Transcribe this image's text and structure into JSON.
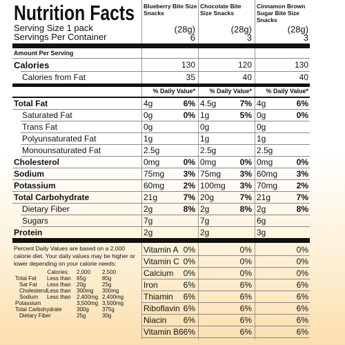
{
  "header": {
    "title": "Nutrition Facts",
    "columns": [
      "Blueberry Bite Size Snacks",
      "Chocolate Bite Size Snacks",
      "Cinnamon Brown Sugar Bite Size Snacks"
    ]
  },
  "serving": {
    "size_label": "Serving Size 1 pack",
    "sizes": [
      "(28g)",
      "(28g)",
      "(28g)"
    ],
    "per_container_label": "Servings Per Container",
    "per_container": [
      "6",
      "3",
      "3"
    ]
  },
  "amount_per_serving": "Amount Per Serving",
  "calories": {
    "label": "Calories",
    "amounts": [
      "130",
      "120",
      "130"
    ],
    "sub": {
      "label": "Calories from Fat",
      "amounts": [
        "35",
        "40",
        "40"
      ]
    }
  },
  "dv_heading": [
    "% Daily Value*",
    "% Daily Value*",
    "% Daily Value*"
  ],
  "nutrients": [
    {
      "label": "Total Fat",
      "amounts": [
        "4g",
        "4.5g",
        "4g"
      ],
      "dv": [
        "6%",
        "7%",
        "6%"
      ],
      "sub": [
        {
          "label": "Saturated Fat",
          "amounts": [
            "0g",
            "1g",
            "0g"
          ],
          "dv": [
            "0%",
            "5%",
            "0%"
          ]
        },
        {
          "label": "Trans Fat",
          "amounts": [
            "0g",
            "0g",
            "0g"
          ]
        },
        {
          "label": "Polyunsaturated Fat",
          "amounts": [
            "1g",
            "1g",
            "1g"
          ]
        },
        {
          "label": "Monounsaturated Fat",
          "amounts": [
            "2.5g",
            "2.5g",
            "2.5g"
          ]
        }
      ]
    },
    {
      "label": "Cholesterol",
      "amounts": [
        "0mg",
        "0mg",
        "0mg"
      ],
      "dv": [
        "0%",
        "0%",
        "0%"
      ]
    },
    {
      "label": "Sodium",
      "amounts": [
        "75mg",
        "75mg",
        "60mg"
      ],
      "dv": [
        "3%",
        "3%",
        "3%"
      ]
    },
    {
      "label": "Potassium",
      "amounts": [
        "60mg",
        "100mg",
        "70mg"
      ],
      "dv": [
        "2%",
        "3%",
        "2%"
      ]
    },
    {
      "label": "Total Carbohydrate",
      "amounts": [
        "21g",
        "20g",
        "21g"
      ],
      "dv": [
        "7%",
        "7%",
        "7%"
      ],
      "sub": [
        {
          "label": "Dietary Fiber",
          "amounts": [
            "2g",
            "2g",
            "2g"
          ],
          "dv": [
            "8%",
            "8%",
            "8%"
          ]
        },
        {
          "label": "Sugars",
          "amounts": [
            "7g",
            "7g",
            "6g"
          ]
        }
      ]
    },
    {
      "label": "Protein",
      "amounts": [
        "2g",
        "2g",
        "3g"
      ]
    }
  ],
  "vitamins": [
    {
      "label": "Vitamin A",
      "values": [
        "0%",
        "0%",
        "0%"
      ]
    },
    {
      "label": "Vitamin C",
      "values": [
        "0%",
        "0%",
        "0%"
      ]
    },
    {
      "label": "Calcium",
      "values": [
        "0%",
        "0%",
        "0%"
      ]
    },
    {
      "label": "Iron",
      "values": [
        "6%",
        "6%",
        "6%"
      ]
    },
    {
      "label": "Thiamin",
      "values": [
        "6%",
        "6%",
        "6%"
      ]
    },
    {
      "label": "Riboflavin",
      "values": [
        "6%",
        "6%",
        "6%"
      ]
    },
    {
      "label": "Niacin",
      "values": [
        "6%",
        "6%",
        "6%"
      ]
    },
    {
      "label": "Vitamin B6",
      "values": [
        "6%",
        "6%",
        "6%"
      ]
    }
  ],
  "footnote": {
    "text": "Percent Daily Values are based on a 2,000 calorie diet. Your daily values may be higher or lower depending on your calorie needs:",
    "table": {
      "header": [
        "Calories:",
        "2,000",
        "2,500"
      ],
      "rows": [
        [
          "Total Fat",
          "Less than",
          "65g",
          "80g"
        ],
        [
          "Sat Fat",
          "Less than",
          "20g",
          "25g"
        ],
        [
          "Cholesterol",
          "Less than",
          "300mg",
          "300mg"
        ],
        [
          "Sodium",
          "Less than",
          "2,400mg",
          "2,400mg"
        ],
        [
          "Potassium",
          "3,500mg",
          "3,500mg"
        ],
        [
          "Total Carbohydrate",
          "300g",
          "375g"
        ],
        [
          "Dietary Fiber",
          "25g",
          "30g"
        ]
      ]
    }
  }
}
